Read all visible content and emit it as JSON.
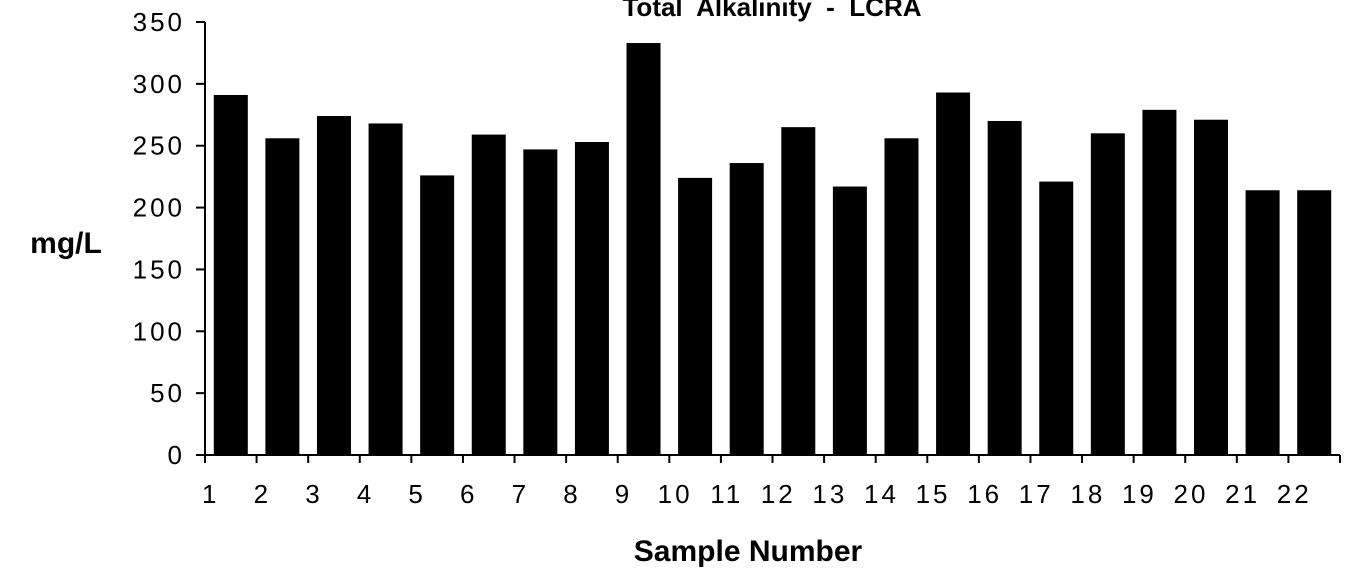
{
  "chart_data": {
    "type": "bar",
    "title": "Total  Alkalinity  -  LCRA",
    "xlabel": "Sample Number",
    "ylabel": "mg/L",
    "categories": [
      "1",
      "2",
      "3",
      "4",
      "5",
      "6",
      "7",
      "8",
      "9",
      "10",
      "11",
      "12",
      "13",
      "14",
      "15",
      "16",
      "17",
      "18",
      "19",
      "20",
      "21",
      "22"
    ],
    "values": [
      291,
      256,
      274,
      268,
      226,
      259,
      247,
      253,
      333,
      224,
      236,
      265,
      217,
      256,
      293,
      270,
      221,
      260,
      279,
      271,
      214,
      214
    ],
    "ylim": [
      0,
      350
    ],
    "yticks": [
      "0",
      "50",
      "100",
      "150",
      "200",
      "250",
      "300",
      "350"
    ],
    "grid": false,
    "legend": "none",
    "bar_color": "#000000"
  }
}
